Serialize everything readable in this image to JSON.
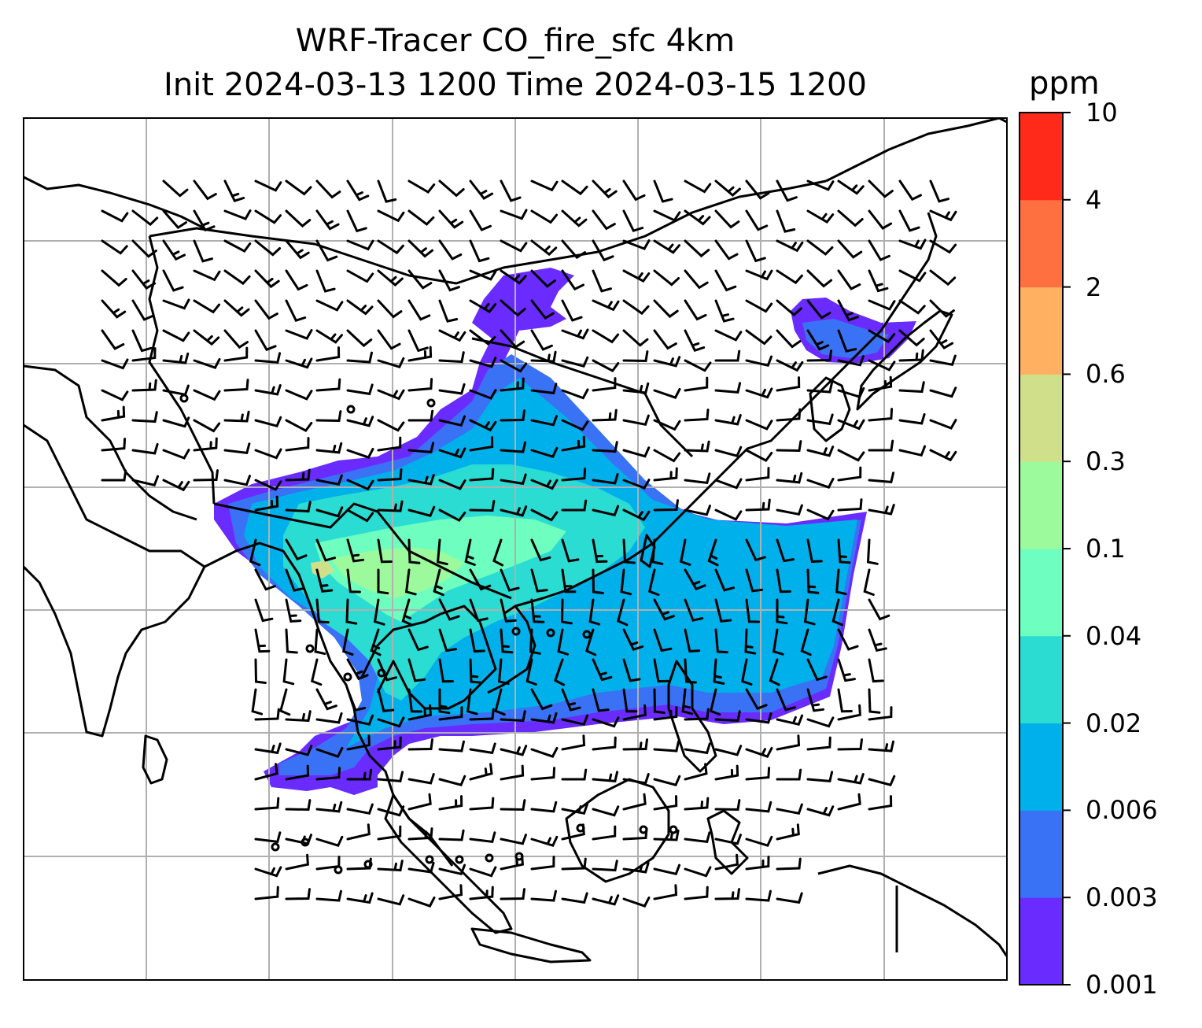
{
  "title": {
    "line1": "WRF-Tracer CO_fire_sfc 4km",
    "line2": "Init 2024-03-13 1200 Time 2024-03-15 1200"
  },
  "colorbar": {
    "unit": "ppm",
    "ticks": [
      "0.001",
      "0.003",
      "0.006",
      "0.02",
      "0.04",
      "0.1",
      "0.3",
      "0.6",
      "2",
      "4",
      "10"
    ],
    "colors": [
      "#6a2bff",
      "#3a72f5",
      "#00b0ea",
      "#2bdcd3",
      "#6effc0",
      "#9cfa9c",
      "#d0e08a",
      "#ffb060",
      "#ff7040",
      "#ff2a1a"
    ]
  },
  "map": {
    "projection": "lat-lon",
    "gridlines": true,
    "field": "CO_fire_sfc",
    "overlay": "wind-barbs"
  }
}
